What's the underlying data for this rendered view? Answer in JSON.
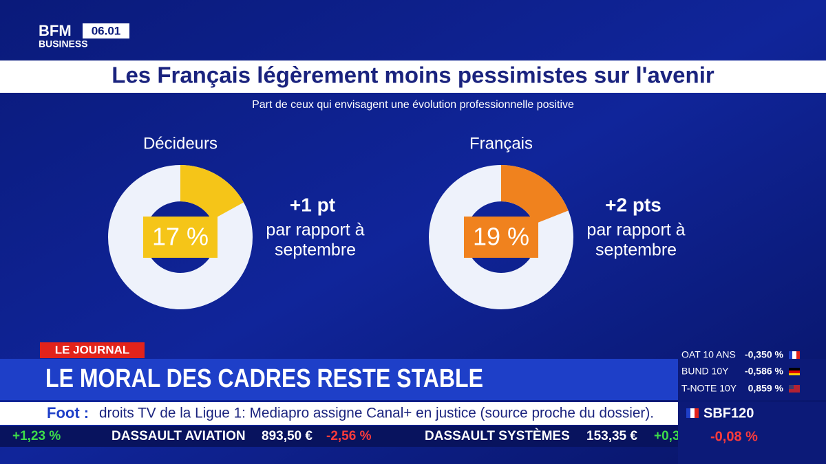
{
  "logo": {
    "brand": "BFM",
    "sub": "BUSINESS",
    "time": "06.01"
  },
  "header": {
    "title": "Les Français légèrement moins pessimistes sur l'avenir",
    "subtitle": "Part de ceux qui envisagent une évolution professionnelle positive"
  },
  "chart_data": [
    {
      "type": "pie",
      "title": "Décideurs",
      "values": [
        17
      ],
      "value_labels": [
        "17 %"
      ],
      "color": "#f5c518",
      "change": "+1 pt",
      "note": [
        "par rapport à",
        "septembre"
      ]
    },
    {
      "type": "pie",
      "title": "Français",
      "values": [
        19
      ],
      "value_labels": [
        "19 %"
      ],
      "color": "#f0821e",
      "change": "+2 pts",
      "note": [
        "par rapport à",
        "septembre"
      ]
    }
  ],
  "banner": {
    "tag": "LE JOURNAL",
    "headline": "LE MORAL DES CADRES RESTE STABLE"
  },
  "rates": [
    {
      "name": "OAT 10 ANS",
      "value": "-0,350 %"
    },
    {
      "name": "BUND 10Y",
      "value": "-0,586 %"
    },
    {
      "name": "T-NOTE 10Y",
      "value": "0,859 %"
    }
  ],
  "news": {
    "topic": "Foot :",
    "text": "droits TV de la Ligue 1: Mediapro assigne Canal+ en justice (source proche du dossier)."
  },
  "index": {
    "name": "SBF120",
    "change": "-0,08 %"
  },
  "ticker": {
    "lead_change": "+1,23 %",
    "items": [
      {
        "name": "DASSAULT AVIATION",
        "price": "893,50 €",
        "change": "-2,56 %"
      },
      {
        "name": "DASSAULT SYSTÈMES",
        "price": "153,35 €",
        "change": "+0,3"
      }
    ]
  }
}
